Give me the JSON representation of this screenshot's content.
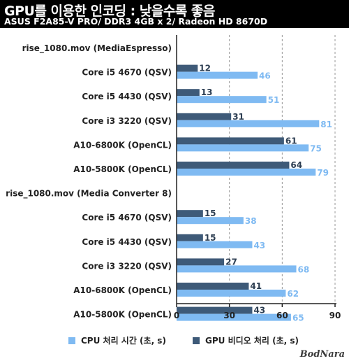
{
  "header": {
    "title": "GPU를 이용한 인코딩 : 낮을수록 좋음",
    "subtitle": "ASUS F2A85-V PRO/ DDR3 4GB x 2/ Radeon HD 8670D"
  },
  "watermark": "BodNara",
  "colors": {
    "cpu": "#7fbaf2",
    "gpu": "#3e5a78",
    "background": "#ffffff",
    "header": "#000000"
  },
  "chart_data": {
    "type": "bar",
    "orientation": "horizontal",
    "title": "GPU를 이용한 인코딩 : 낮을수록 좋음",
    "subtitle": "ASUS F2A85-V PRO/ DDR3 4GB x 2/ Radeon HD 8670D",
    "xlim": [
      0,
      90
    ],
    "xticks": [
      0,
      30,
      60,
      90
    ],
    "grid": true,
    "legend_position": "bottom",
    "groups": [
      {
        "heading": "rise_1080.mov (MediaEspresso)",
        "categories": [
          "Core i5 4670 (QSV)",
          "Core i5 4430 (QSV)",
          "Core i3 3220 (QSV)",
          "A10-6800K (OpenCL)",
          "A10-5800K (OpenCL)"
        ],
        "gpu": [
          12,
          13,
          31,
          61,
          64
        ],
        "cpu": [
          46,
          51,
          81,
          75,
          79
        ]
      },
      {
        "heading": "rise_1080.mov (Media Converter 8)",
        "categories": [
          "Core i5 4670 (QSV)",
          "Core i5 4430 (QSV)",
          "Core i3 3220 (QSV)",
          "A10-6800K (OpenCL)",
          "A10-5800K (OpenCL)"
        ],
        "gpu": [
          15,
          15,
          27,
          41,
          43
        ],
        "cpu": [
          38,
          43,
          68,
          62,
          65
        ]
      }
    ],
    "series": [
      {
        "key": "cpu",
        "name": "CPU 처리 시간 (초, s)"
      },
      {
        "key": "gpu",
        "name": "GPU 비디오 처리 (초, s)"
      }
    ]
  }
}
